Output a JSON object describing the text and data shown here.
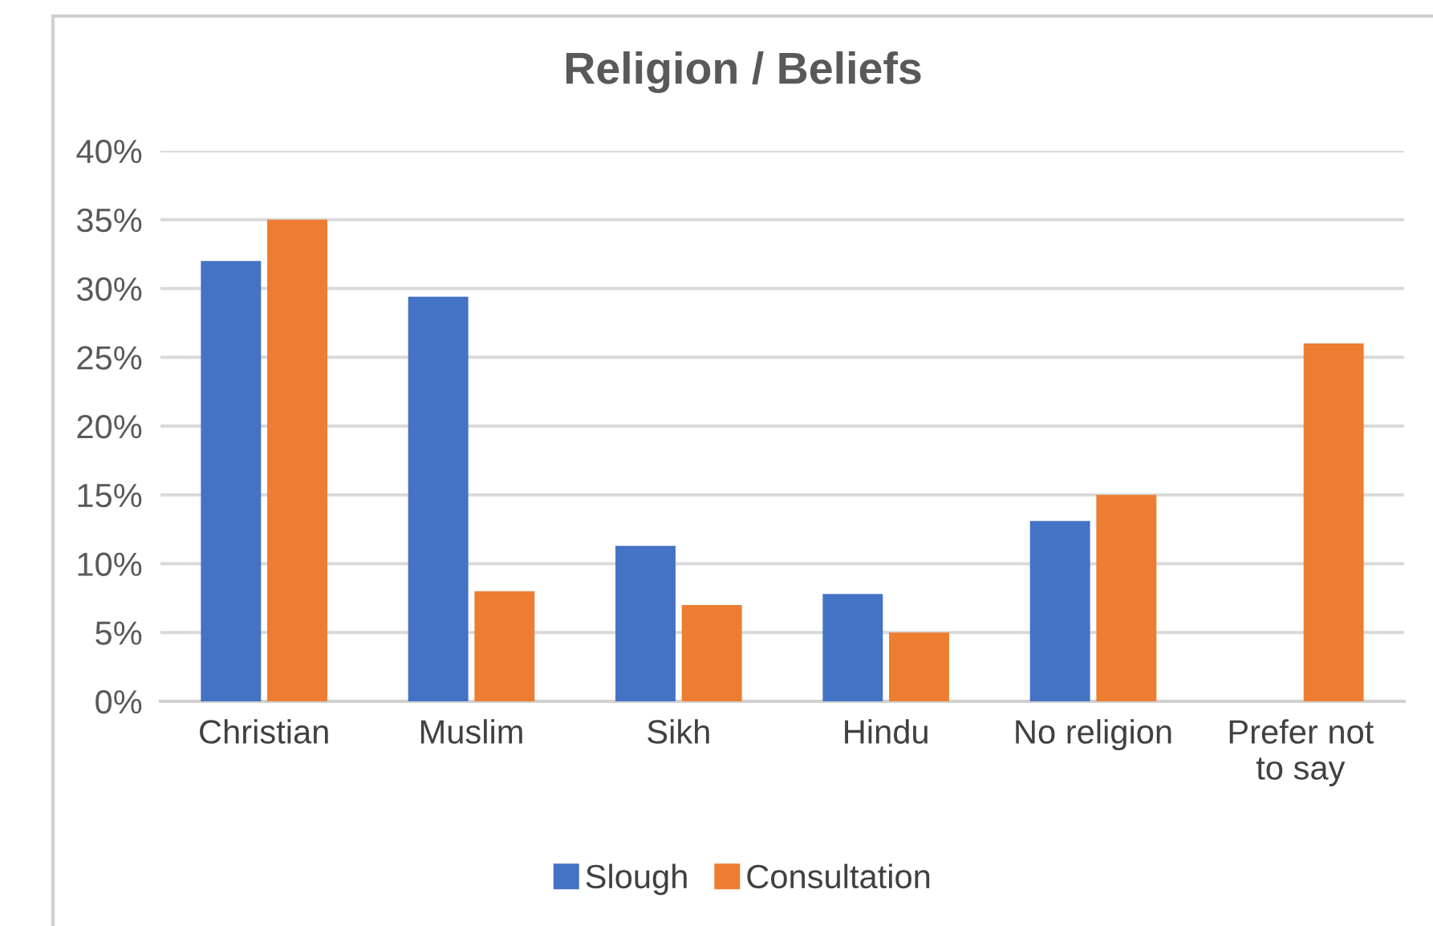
{
  "chart_data": {
    "type": "bar",
    "title": "Religion / Beliefs",
    "categories": [
      "Christian",
      "Muslim",
      "Sikh",
      "Hindu",
      "No religion",
      "Prefer not\nto say"
    ],
    "series": [
      {
        "name": "Slough",
        "color": "#4472c4",
        "values": [
          32,
          29.4,
          11.3,
          7.8,
          13.1,
          null
        ]
      },
      {
        "name": "Consultation",
        "color": "#ed7d31",
        "values": [
          35,
          8,
          7,
          5,
          15,
          26
        ]
      }
    ],
    "ylim": [
      0,
      40
    ],
    "yticks": [
      {
        "value": 0,
        "label": "0%"
      },
      {
        "value": 5,
        "label": "5%"
      },
      {
        "value": 10,
        "label": "10%"
      },
      {
        "value": 15,
        "label": "15%"
      },
      {
        "value": 20,
        "label": "20%"
      },
      {
        "value": 25,
        "label": "25%"
      },
      {
        "value": 30,
        "label": "30%"
      },
      {
        "value": 35,
        "label": "35%"
      },
      {
        "value": 40,
        "label": "40%"
      }
    ],
    "grid": "y",
    "legend": "bottom"
  }
}
